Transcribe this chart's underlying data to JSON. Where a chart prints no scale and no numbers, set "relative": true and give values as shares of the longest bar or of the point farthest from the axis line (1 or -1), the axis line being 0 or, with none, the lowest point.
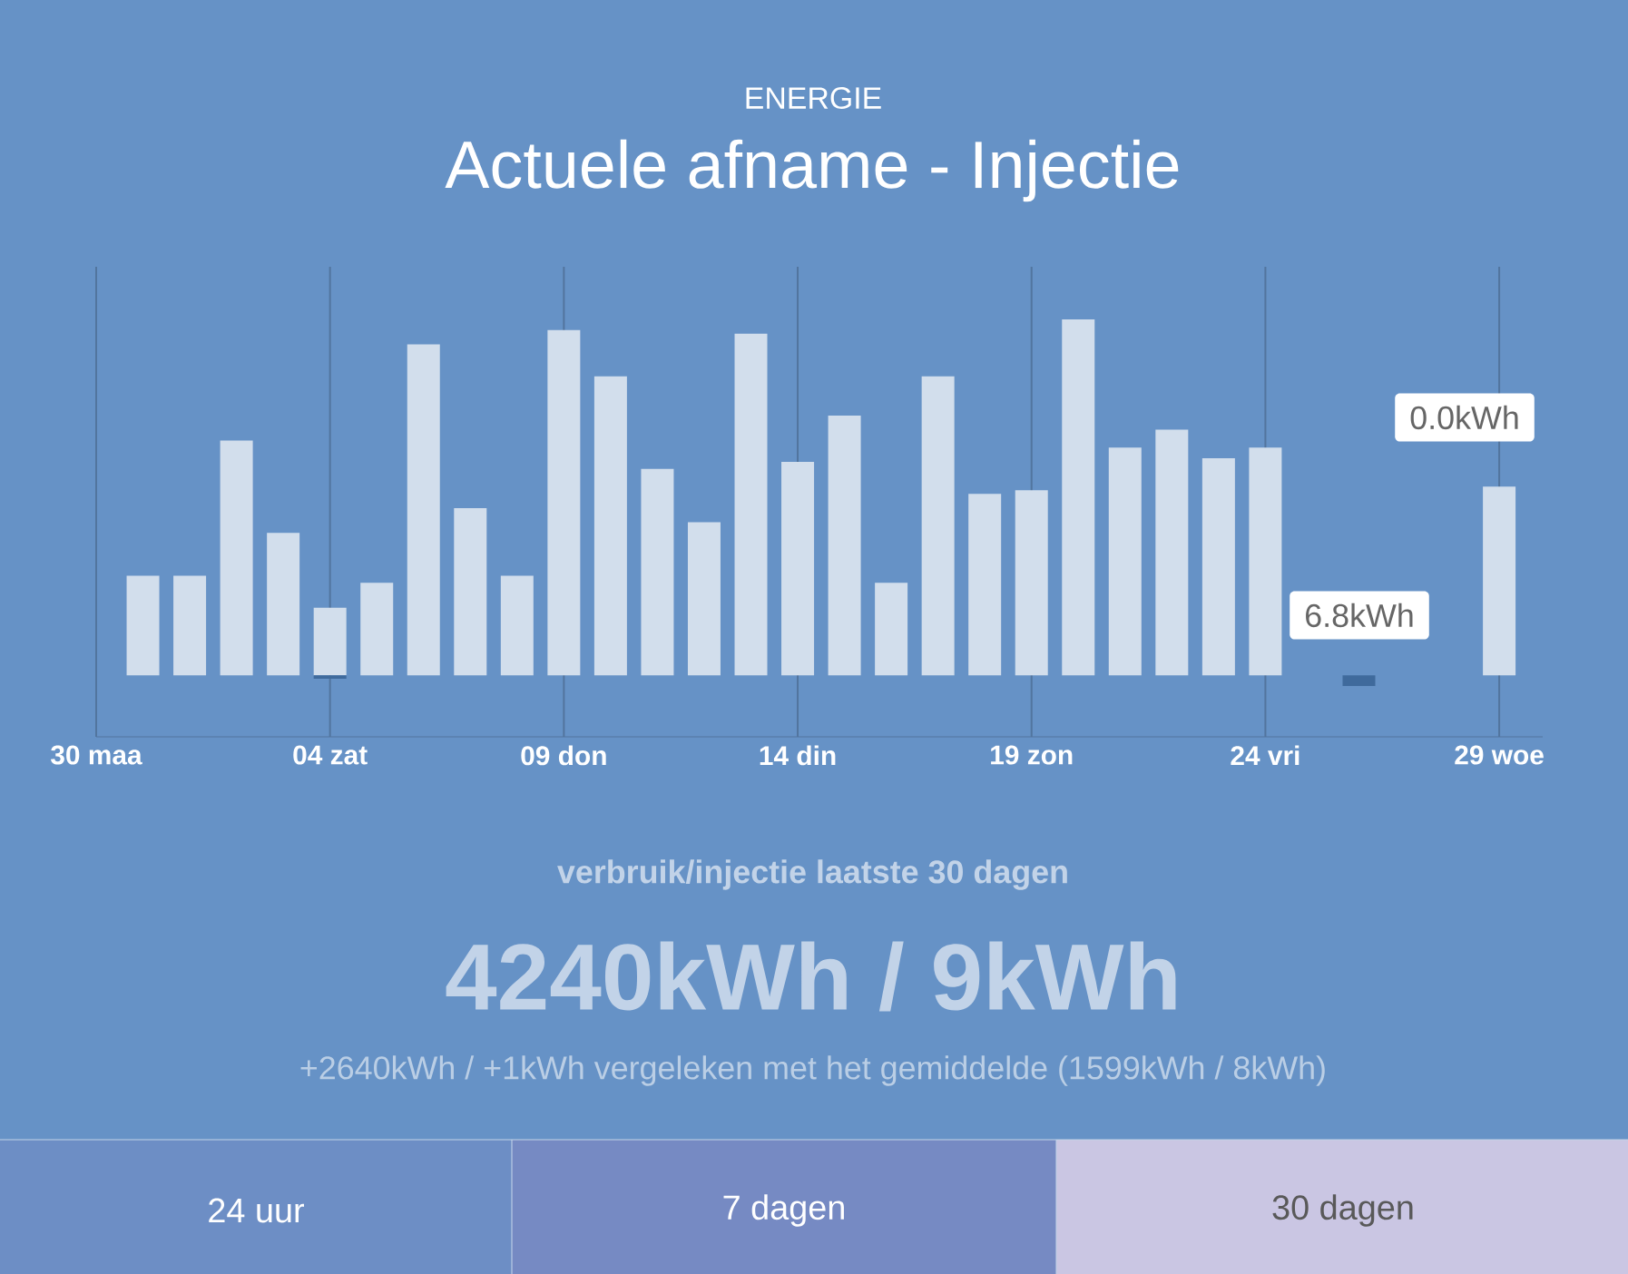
{
  "chart_data": {
    "type": "bar",
    "subtitle": "ENERGIE",
    "title": "Actuele afname - Injectie",
    "categories": [
      "30 maa",
      null,
      null,
      null,
      null,
      "04 zat",
      null,
      null,
      null,
      null,
      "09 don",
      null,
      null,
      null,
      null,
      "14 din",
      null,
      null,
      null,
      null,
      "19 zon",
      null,
      null,
      null,
      null,
      "24 vri",
      null,
      null,
      null,
      null,
      "29 woe"
    ],
    "relative": true,
    "grid": "x",
    "series": [
      {
        "color": "#d2deec",
        "values": [
          null,
          0.28,
          0.28,
          0.66,
          0.4,
          0.19,
          0.26,
          0.93,
          0.47,
          0.28,
          0.97,
          0.84,
          0.58,
          0.43,
          0.96,
          0.6,
          0.73,
          0.26,
          0.84,
          0.51,
          0.52,
          1,
          0.64,
          0.69,
          0.61,
          0.64,
          null,
          null,
          null,
          null,
          0.53
        ]
      },
      {
        "color": "#3f6a9c",
        "values": [
          null,
          null,
          null,
          null,
          null,
          -0.01,
          null,
          null,
          null,
          null,
          null,
          null,
          null,
          null,
          null,
          null,
          null,
          null,
          null,
          null,
          null,
          null,
          null,
          null,
          null,
          null,
          null,
          -0.03,
          null,
          null,
          null
        ]
      }
    ],
    "annotations": [
      "6.8kWh",
      "0.0kWh",
      "verbruik/injectie laatste 30 dagen",
      "4240kWh / 9kWh",
      "+2640kWh / +1kWh vergeleken met het gemiddelde (1599kWh / 8kWh)",
      "24 uur",
      "7 dagen",
      "30 dagen"
    ]
  }
}
